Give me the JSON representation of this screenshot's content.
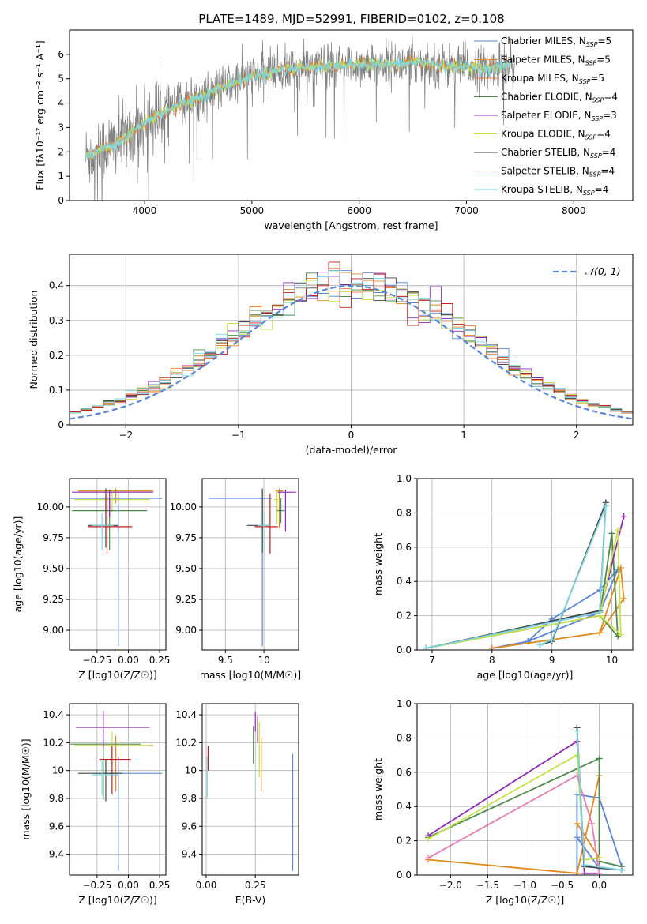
{
  "title": "PLATE=1489, MJD=52991, FIBERID=0102, z=0.108",
  "colors": {
    "Chabrier MILES": "#5b85d6",
    "Salpeter MILES": "#e0891f",
    "Kroupa MILES": "#e87a3a",
    "Chabrier ELODIE": "#4e8a4e",
    "Salpeter ELODIE": "#8e2bb5",
    "Kroupa ELODIE": "#c8e04a",
    "Chabrier STELIB": "#444444",
    "Salpeter STELIB": "#c21f1f",
    "Kroupa STELIB": "#7ed6e0",
    "data": "#808080",
    "dash": "#5b85d6",
    "pink": "#e37fb5"
  },
  "chart_data": [
    {
      "type": "line",
      "title": "PLATE=1489, MJD=52991, FIBERID=0102, z=0.108",
      "xlabel": "wavelength [Angstrom, rest frame]",
      "ylabel": "Flux [fλ10⁻¹⁷ erg cm⁻² s⁻¹ A⁻¹]",
      "xlim": [
        3300,
        8550
      ],
      "ylim": [
        0,
        7
      ],
      "xticks": [
        4000,
        5000,
        6000,
        7000,
        8000
      ],
      "yticks": [
        0,
        1,
        2,
        3,
        4,
        5,
        6
      ],
      "legend_position": "top-right",
      "legend": [
        "Chabrier MILES, N_SSP=5",
        "Salpeter MILES, N_SSP=5",
        "Kroupa MILES, N_SSP=5",
        "Chabrier ELODIE, N_SSP=4",
        "Salpeter ELODIE, N_SSP=3",
        "Kroupa ELODIE, N_SSP=4",
        "Chabrier STELIB, N_SSP=4",
        "Salpeter STELIB, N_SSP=4",
        "Kroupa STELIB, N_SSP=4"
      ],
      "continuum": {
        "x": [
          3450,
          3600,
          3800,
          4000,
          4200,
          4400,
          4600,
          4800,
          5000,
          5200,
          5400,
          5600,
          5800,
          6000,
          6200,
          6400,
          6600,
          6800,
          7000,
          7200,
          7400
        ],
        "y": [
          1.8,
          2.1,
          2.5,
          3.2,
          3.7,
          4.1,
          4.4,
          4.8,
          5.1,
          5.3,
          5.4,
          5.5,
          5.5,
          5.6,
          5.6,
          5.6,
          5.7,
          5.5,
          5.5,
          5.4,
          5.6
        ]
      }
    },
    {
      "type": "bar",
      "xlabel": "(data-model)/error",
      "ylabel": "Normed distribution",
      "xlim": [
        -2.5,
        2.5
      ],
      "ylim": [
        0,
        0.49
      ],
      "xticks": [
        -2,
        -1,
        0,
        1,
        2
      ],
      "yticks": [
        0.0,
        0.1,
        0.2,
        0.3,
        0.4
      ],
      "legend": [
        "𝒩(0,1)"
      ],
      "bin_width": 0.1,
      "grid": true
    },
    {
      "type": "scatter",
      "xlabel": "Z [log10(Z/Z☉)]",
      "ylabel": "age  [log10(age/yr)]",
      "xlim": [
        -0.47,
        0.3
      ],
      "ylim": [
        8.84,
        10.23
      ],
      "xticks": [
        -0.25,
        0.0,
        0.25
      ],
      "xticklabels": [
        "−0.25",
        "0.00",
        "0.25"
      ],
      "yticks": [
        9.0,
        9.25,
        9.5,
        9.75,
        10.0
      ],
      "yticklabels": [
        "9.00",
        "9.25",
        "9.50",
        "9.75",
        "10.00"
      ],
      "errorbars": [
        {
          "color": "Chabrier MILES",
          "x": -0.08,
          "xerr": [
            0.39,
            0.35
          ],
          "y": 10.07,
          "yerr": [
            1.2,
            0.07
          ]
        },
        {
          "color": "Salpeter MILES",
          "x": -0.1,
          "xerr": [
            0.3,
            0.3
          ],
          "y": 10.13,
          "yerr": [
            0.1,
            0.02
          ]
        },
        {
          "color": "Kroupa ELODIE",
          "x": -0.13,
          "xerr": [
            0.3,
            0.3
          ],
          "y": 10.06,
          "yerr": [
            0.1,
            0.08
          ]
        },
        {
          "color": "Chabrier ELODIE",
          "x": -0.15,
          "xerr": [
            0.3,
            0.3
          ],
          "y": 9.97,
          "yerr": [
            0.32,
            0.1
          ]
        },
        {
          "color": "Salpeter ELODIE",
          "x": -0.15,
          "xerr": [
            0.3,
            0.35
          ],
          "y": 10.12,
          "yerr": [
            0.2,
            0.02
          ]
        },
        {
          "color": "Chabrier STELIB",
          "x": -0.18,
          "xerr": [
            0.14,
            0.1
          ],
          "y": 9.85,
          "yerr": [
            0.18,
            0.3
          ]
        },
        {
          "color": "Salpeter STELIB",
          "x": -0.17,
          "xerr": [
            0.15,
            0.2
          ],
          "y": 9.84,
          "yerr": [
            0.22,
            0.27
          ]
        },
        {
          "color": "Kroupa STELIB",
          "x": -0.21,
          "xerr": [
            0.08,
            0.09
          ],
          "y": 9.85,
          "yerr": [
            0.2,
            0.1
          ]
        }
      ]
    },
    {
      "type": "scatter",
      "xlabel": "mass [log10(M/M☉)]",
      "xlim": [
        9.2,
        10.45
      ],
      "ylim": [
        8.84,
        10.23
      ],
      "xticks": [
        9.5,
        10.0
      ],
      "yticks": [
        9.0,
        9.25,
        9.5,
        9.75,
        10.0
      ],
      "yticklabels": [
        "9.00",
        "9.25",
        "9.50",
        "9.75",
        "10.00"
      ],
      "errorbars": [
        {
          "color": "Chabrier MILES",
          "x": 9.98,
          "xerr": [
            0.7,
            0.12
          ],
          "y": 10.07,
          "yerr": [
            1.2,
            0.07
          ]
        },
        {
          "color": "Salpeter MILES",
          "x": 10.2,
          "xerr": [
            0.05,
            0.05
          ],
          "y": 10.13,
          "yerr": [
            0.3,
            0.02
          ]
        },
        {
          "color": "Kroupa ELODIE",
          "x": 10.17,
          "xerr": [
            0.04,
            0.04
          ],
          "y": 10.06,
          "yerr": [
            0.2,
            0.08
          ]
        },
        {
          "color": "Chabrier ELODIE",
          "x": 10.22,
          "xerr": [
            0.05,
            0.05
          ],
          "y": 9.97,
          "yerr": [
            0.1,
            0.1
          ]
        },
        {
          "color": "Salpeter ELODIE",
          "x": 10.28,
          "xerr": [
            0.1,
            0.14
          ],
          "y": 10.12,
          "yerr": [
            0.32,
            0.02
          ]
        },
        {
          "color": "Chabrier STELIB",
          "x": 9.98,
          "xerr": [
            0.2,
            0.1
          ],
          "y": 9.85,
          "yerr": [
            0.22,
            0.3
          ]
        },
        {
          "color": "Salpeter STELIB",
          "x": 10.08,
          "xerr": [
            0.2,
            0.1
          ],
          "y": 9.84,
          "yerr": [
            0.22,
            0.27
          ]
        },
        {
          "color": "Kroupa STELIB",
          "x": 10.0,
          "xerr": [
            0.08,
            0.08
          ],
          "y": 9.85,
          "yerr": [
            0.2,
            0.1
          ]
        }
      ]
    },
    {
      "type": "line",
      "xlabel": "age  [log10(age/yr)]",
      "ylabel": "mass weight",
      "xlim": [
        6.75,
        10.35
      ],
      "ylim": [
        0,
        1.0
      ],
      "xticks": [
        7,
        8,
        9,
        10
      ],
      "yticks": [
        0.0,
        0.2,
        0.4,
        0.6,
        0.8,
        1.0
      ],
      "yticklabels": [
        "0.0",
        "0.2",
        "0.4",
        "0.6",
        "0.8",
        "1.0"
      ],
      "series": [
        {
          "color": "Chabrier MILES",
          "x": [
            8.0,
            8.6,
            9.0,
            9.8,
            10.1,
            9.8,
            8.6,
            8.0
          ],
          "y": [
            0.01,
            0.05,
            0.18,
            0.35,
            0.47,
            0.22,
            0.05,
            0.01
          ]
        },
        {
          "color": "Salpeter MILES",
          "x": [
            8.0,
            9.8,
            10.15,
            10.2,
            9.8
          ],
          "y": [
            0.01,
            0.1,
            0.48,
            0.3,
            0.1
          ]
        },
        {
          "color": "Chabrier ELODIE",
          "x": [
            6.9,
            9.8,
            10.0,
            10.1,
            9.8
          ],
          "y": [
            0.01,
            0.2,
            0.68,
            0.08,
            0.2
          ]
        },
        {
          "color": "Salpeter ELODIE",
          "x": [
            6.9,
            9.8,
            10.2,
            9.8
          ],
          "y": [
            0.01,
            0.22,
            0.78,
            0.22
          ]
        },
        {
          "color": "Kroupa ELODIE",
          "x": [
            6.9,
            9.8,
            10.1,
            10.15,
            9.8
          ],
          "y": [
            0.01,
            0.2,
            0.7,
            0.09,
            0.2
          ]
        },
        {
          "color": "Chabrier STELIB",
          "x": [
            6.9,
            9.8,
            9.9,
            9.0,
            8.8
          ],
          "y": [
            0.01,
            0.23,
            0.86,
            0.05,
            0.03
          ]
        },
        {
          "color": "Kroupa STELIB",
          "x": [
            6.9,
            9.8,
            9.9,
            9.0,
            8.8
          ],
          "y": [
            0.01,
            0.22,
            0.84,
            0.06,
            0.03
          ]
        }
      ]
    },
    {
      "type": "scatter",
      "xlabel": "Z [log10(Z/Z☉)]",
      "ylabel": "mass [log10(M/M☉)]",
      "xlim": [
        -0.47,
        0.3
      ],
      "ylim": [
        9.25,
        10.48
      ],
      "xticks": [
        -0.25,
        0.0,
        0.25
      ],
      "xticklabels": [
        "−0.25",
        "0.00",
        "0.25"
      ],
      "yticks": [
        9.4,
        9.6,
        9.8,
        10.0,
        10.2,
        10.4
      ],
      "errorbars": [
        {
          "color": "Chabrier MILES",
          "x": -0.08,
          "xerr": [
            0.15,
            0.35
          ],
          "y": 9.98,
          "yerr": [
            0.7,
            0.12
          ]
        },
        {
          "color": "Salpeter MILES",
          "x": -0.1,
          "xerr": [
            0.33,
            0.3
          ],
          "y": 10.18,
          "yerr": [
            0.33,
            0.07
          ]
        },
        {
          "color": "Kroupa ELODIE",
          "x": -0.13,
          "xerr": [
            0.3,
            0.3
          ],
          "y": 10.18,
          "yerr": [
            0.13,
            0.1
          ]
        },
        {
          "color": "Chabrier ELODIE",
          "x": -0.2,
          "xerr": [
            0.3,
            0.3
          ],
          "y": 10.19,
          "yerr": [
            0.4,
            0.1
          ]
        },
        {
          "color": "Salpeter ELODIE",
          "x": -0.2,
          "xerr": [
            0.22,
            0.37
          ],
          "y": 10.31,
          "yerr": [
            0.15,
            0.12
          ]
        },
        {
          "color": "Chabrier STELIB",
          "x": -0.18,
          "xerr": [
            0.22,
            0.13
          ],
          "y": 9.98,
          "yerr": [
            0.2,
            0.1
          ]
        },
        {
          "color": "Salpeter STELIB",
          "x": -0.13,
          "xerr": [
            0.1,
            0.15
          ],
          "y": 10.08,
          "yerr": [
            0.25,
            0.1
          ]
        },
        {
          "color": "Kroupa STELIB",
          "x": -0.21,
          "xerr": [
            0.08,
            0.13
          ],
          "y": 9.97,
          "yerr": [
            0.15,
            0.1
          ]
        }
      ]
    },
    {
      "type": "scatter",
      "xlabel": "E(B-V)",
      "xlim": [
        -0.02,
        0.47
      ],
      "ylim": [
        9.25,
        10.48
      ],
      "xticks": [
        0.0,
        0.25
      ],
      "xticklabels": [
        "0.00",
        "0.25"
      ],
      "yticks": [
        9.4,
        9.6,
        9.8,
        10.0,
        10.2,
        10.4
      ],
      "errorbars": [
        {
          "color": "Chabrier MILES",
          "x": 0.44,
          "xerr": [
            0,
            0
          ],
          "y": 9.7,
          "yerr": [
            0.42,
            0.42
          ]
        },
        {
          "color": "Salpeter MILES",
          "x": 0.28,
          "xerr": [
            0,
            0
          ],
          "y": 10.1,
          "yerr": [
            0.25,
            0.14
          ]
        },
        {
          "color": "Chabrier ELODIE",
          "x": 0.24,
          "xerr": [
            0,
            0
          ],
          "y": 10.22,
          "yerr": [
            0.17,
            0.1
          ]
        },
        {
          "color": "Salpeter ELODIE",
          "x": 0.25,
          "xerr": [
            0,
            0
          ],
          "y": 10.35,
          "yerr": [
            0.07,
            0.07
          ]
        },
        {
          "color": "pink",
          "x": 0.26,
          "xerr": [
            0,
            0
          ],
          "y": 10.3,
          "yerr": [
            0.1,
            0.09
          ]
        },
        {
          "color": "Kroupa ELODIE",
          "x": 0.27,
          "xerr": [
            0,
            0
          ],
          "y": 10.15,
          "yerr": [
            0.2,
            0.2
          ]
        },
        {
          "color": "Salpeter STELIB",
          "x": 0.01,
          "xerr": [
            0,
            0
          ],
          "y": 10.1,
          "yerr": [
            0.1,
            0.08
          ]
        },
        {
          "color": "Kroupa STELIB",
          "x": 0.005,
          "xerr": [
            0,
            0
          ],
          "y": 9.9,
          "yerr": [
            0.1,
            0.2
          ]
        }
      ]
    },
    {
      "type": "line",
      "xlabel": "Z [log10(Z/Z☉)]",
      "ylabel": "mass weight",
      "xlim": [
        -2.45,
        0.45
      ],
      "ylim": [
        0,
        1.0
      ],
      "xticks": [
        -2.0,
        -1.5,
        -1.0,
        -0.5,
        0.0
      ],
      "xticklabels": [
        "−2.0",
        "−1.5",
        "−1.0",
        "−0.5",
        "0.0"
      ],
      "yticks": [
        0.0,
        0.2,
        0.4,
        0.6,
        0.8,
        1.0
      ],
      "yticklabels": [
        "0.0",
        "0.2",
        "0.4",
        "0.6",
        "0.8",
        "1.0"
      ],
      "series": [
        {
          "color": "Chabrier MILES",
          "x": [
            -0.3,
            -0.3,
            0.0,
            0.3,
            0.3,
            0.0,
            -0.3
          ],
          "y": [
            0.01,
            0.47,
            0.45,
            0.05,
            0.03,
            0.04,
            0.22
          ]
        },
        {
          "color": "Salpeter MILES",
          "x": [
            -2.3,
            -0.3,
            0.0,
            0.0,
            -0.3
          ],
          "y": [
            0.09,
            0.01,
            0.58,
            0.1,
            0.3
          ]
        },
        {
          "color": "Chabrier ELODIE",
          "x": [
            -2.3,
            0.0,
            0.0,
            0.3
          ],
          "y": [
            0.22,
            0.68,
            0.08,
            0.05
          ]
        },
        {
          "color": "Salpeter ELODIE",
          "x": [
            -2.3,
            -0.3,
            -0.2,
            0.0
          ],
          "y": [
            0.23,
            0.78,
            0.01,
            0.01
          ]
        },
        {
          "color": "Kroupa ELODIE",
          "x": [
            -2.3,
            -0.3,
            -0.2,
            0.0
          ],
          "y": [
            0.21,
            0.7,
            0.09,
            0.1
          ]
        },
        {
          "color": "pink",
          "x": [
            -2.3,
            -0.3,
            -0.1,
            0.0
          ],
          "y": [
            0.1,
            0.58,
            0.3,
            0.01
          ]
        },
        {
          "color": "Chabrier STELIB",
          "x": [
            -0.3,
            -0.2,
            0.3
          ],
          "y": [
            0.86,
            0.05,
            0.03
          ]
        },
        {
          "color": "Kroupa STELIB",
          "x": [
            -0.3,
            -0.2,
            0.3
          ],
          "y": [
            0.84,
            0.06,
            0.03
          ]
        }
      ]
    }
  ]
}
